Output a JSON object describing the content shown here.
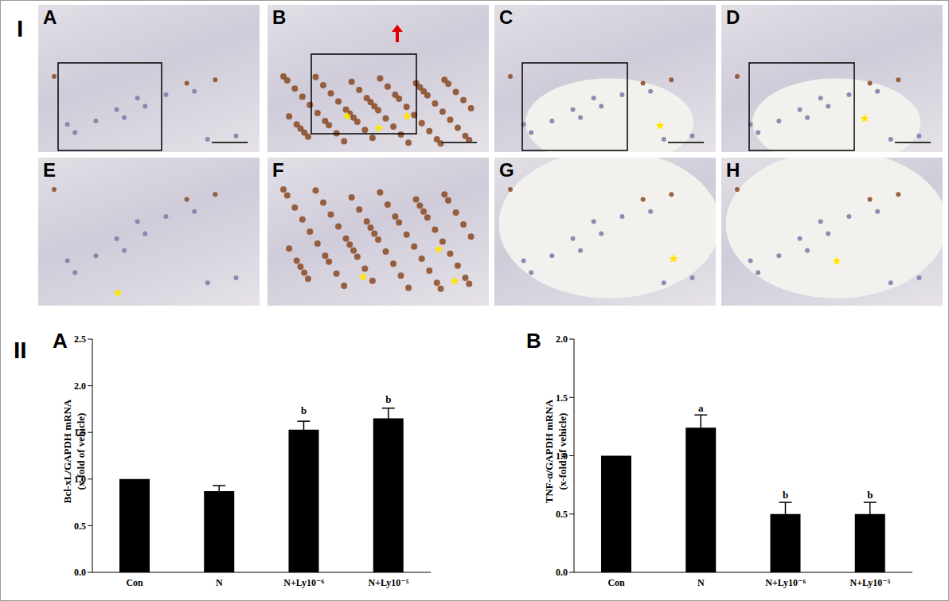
{
  "figure": {
    "section_labels": [
      "I",
      "II"
    ],
    "image_panels": [
      "A",
      "B",
      "C",
      "D",
      "E",
      "F",
      "G",
      "H"
    ]
  },
  "chart_data": [
    {
      "type": "bar",
      "title": "A",
      "ylabel": "Bcl-xL/GAPDH mRNA (x-fold of vehicle)",
      "categories": [
        "Con",
        "N",
        "N+Ly10⁻⁶",
        "N+Ly10⁻⁵"
      ],
      "values": [
        1.0,
        0.87,
        1.53,
        1.65
      ],
      "errors": [
        0,
        0.06,
        0.09,
        0.11
      ],
      "annotations": [
        {
          "category": "N+Ly10⁻⁶",
          "text": "b"
        },
        {
          "category": "N+Ly10⁻⁵",
          "text": "b"
        }
      ],
      "color": "#000000",
      "ylim": [
        0,
        2.5
      ],
      "yticks": [
        {
          "value": 0,
          "label": "0.0"
        },
        0.5,
        {
          "value": 1,
          "label": "1.0"
        },
        1.5,
        {
          "value": 2,
          "label": "2.0"
        },
        2.5
      ],
      "grid": false
    },
    {
      "type": "bar",
      "title": "B",
      "ylabel": "TNF-α/GAPDH mRNA (x-fold of vehicle)",
      "categories": [
        "Con",
        "N",
        "N+Ly10⁻⁶",
        "N+Ly10⁻⁵"
      ],
      "values": [
        1.0,
        1.24,
        0.5,
        0.5
      ],
      "errors": [
        0,
        0.11,
        0.1,
        0.1
      ],
      "annotations": [
        {
          "category": "N",
          "text": "a"
        },
        {
          "category": "N+Ly10⁻⁶",
          "text": "b"
        },
        {
          "category": "N+Ly10⁻⁵",
          "text": "b"
        }
      ],
      "color": "#000000",
      "ylim": [
        0,
        2.0
      ],
      "yticks": [
        {
          "value": 0,
          "label": "0.0"
        },
        0.5,
        {
          "value": 1,
          "label": "1.0"
        },
        1.5,
        {
          "value": 2,
          "label": "2.0"
        }
      ],
      "grid": false
    }
  ]
}
